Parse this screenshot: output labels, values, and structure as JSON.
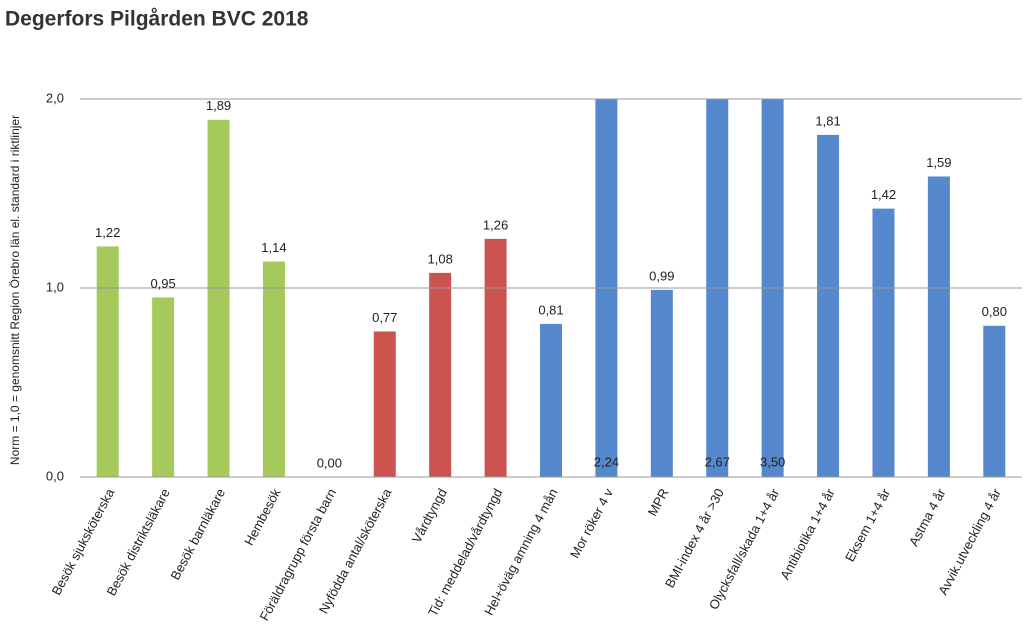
{
  "chart_data": {
    "type": "bar",
    "title": "Degerfors Pilgården BVC 2018",
    "ylabel": "Norm = 1,0 = genomsnitt Region Örebro län el. standard i riktlinjer",
    "categories": [
      "Besök sjuksköterska",
      "Besök distriktsläkare",
      "Besök barnläkare",
      "Hembesök",
      "Föräldragrupp första barn",
      "Nyfödda antal/sköterska",
      "Vårdtyngd",
      "Tid: meddelad/vårdtyngd",
      "Hel+öväg amning 4 mån",
      "Mor röker 4 v",
      "MPR",
      "BMI-index 4 år >30",
      "Olycksfall/skada 1+4 år",
      "Antibiotika 1+4 år",
      "Eksem 1+4 år",
      "Astma 4 år",
      "Avvik.utveckling 4 år"
    ],
    "values": [
      1.22,
      0.95,
      1.89,
      1.14,
      0.0,
      0.77,
      1.08,
      1.26,
      0.81,
      2.24,
      0.99,
      2.67,
      3.5,
      1.81,
      1.42,
      1.59,
      0.8
    ],
    "value_labels": [
      "1,22",
      "0,95",
      "1,89",
      "1,14",
      "0,00",
      "0,77",
      "1,08",
      "1,26",
      "0,81",
      "2,24",
      "0,99",
      "2,67",
      "3,50",
      "1,81",
      "1,42",
      "1,59",
      "0,80"
    ],
    "colors": [
      "#a5c95a",
      "#a5c95a",
      "#a5c95a",
      "#a5c95a",
      "#a5c95a",
      "#cc5450",
      "#cc5450",
      "#cc5450",
      "#5588cc",
      "#5588cc",
      "#5588cc",
      "#5588cc",
      "#5588cc",
      "#5588cc",
      "#5588cc",
      "#5588cc",
      "#5588cc"
    ],
    "ylim": [
      0,
      2
    ],
    "yticks": [
      {
        "value": 0,
        "label": "0,0"
      },
      {
        "value": 1,
        "label": "1,0"
      },
      {
        "value": 2,
        "label": "2,0"
      }
    ],
    "grid": true
  }
}
